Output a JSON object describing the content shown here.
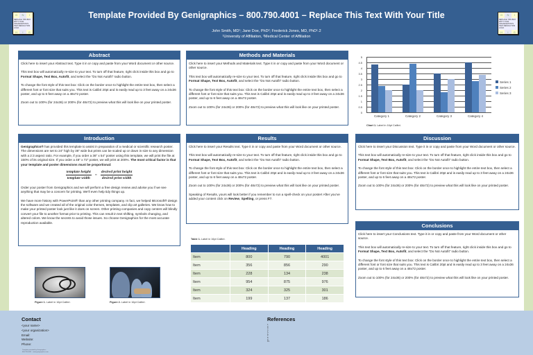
{
  "header": {
    "title": "Template Provided By Genigraphics – 800.790.4001 – Replace This Text With Your Title",
    "authors": "John Smith, MD¹; Jane Doe, PhD²; Frederick Jones, MD, PhD¹˒2",
    "affiliations": "¹University of Affiliation, ²Medical Center of Affiliation",
    "logo": {
      "top": [
        "G",
        "N",
        "I"
      ],
      "mid": "REPLACE THIS BOX WITH YOUR ORGANIZATION'S HIGH RESOLUTION LOGO",
      "bottom": [
        "H",
        "I",
        "G"
      ]
    }
  },
  "sections": {
    "abstract": {
      "heading": "Abstract",
      "p1": "Click here to insert your Abstract text. Type it in or copy and paste from your Word document or other source.",
      "p2a": "This text box will automatically re-size to your text. To turn off that feature, right click inside this box and go to ",
      "p2b": "Format Shape, Text Box, Autofit",
      "p2c": ", and select the “Do Not Autofit” radio button.",
      "p3": "To change the font style of this text box: Click on the border once to highlight the entire text box, then select a different font or font size that suits you. This text is Calibri 20pt and is easily read up to 3 feet away on a 24x36 poster, and up to 6 feet away on a 48x72 poster.",
      "p4": "Zoom out to 100% (for 24x36) or 200% (for 48x72) to preview what this will look like on your printed poster."
    },
    "methods": {
      "heading": "Methods and Materials",
      "p1": "Click here to insert your Methods and Materials text. Type it in or copy and paste from your Word document or other source.",
      "p2a": "This text box will automatically re-size to your text. To turn off that feature, right click inside this box and go to ",
      "p2b": "Format Shape, Text Box, Autofit",
      "p2c": ", and select the “Do Not Autofit” radio button.",
      "p3": "To change the font style of this text box: Click on the border once to highlight the entire text box, then select a different font or font size that suits you. This text is Calibri 20pt and is easily read up to 3 feet away on a 24x36 poster, and up to 6 feet away on a 48x72 poster.",
      "p4": "Zoom out to 100% (for 24x36) or 200% (for 48x72) to preview what this will look like on your printed poster."
    },
    "introduction": {
      "heading": "Introduction",
      "p1_bold": "Genigraphics®",
      "p1": " has provided this template to assist in preparation of a medical or scientific research poster. The dimensions are set to 24” high by 36” wide but prints can be scaled up or down in size to any dimension with a 2:3 aspect ratio. For example, if you order a 36” x 54” poster using this template, we will print the file at 150% of its original size. If you order a 48” x 72” poster, we will print at 200%. ",
      "p1_bold2": "The most critical factor is that your template and poster dimensions must be proportional:",
      "formula": {
        "num_left": "template height",
        "den_left": "template width",
        "eq": "=",
        "num_right": "desired print height",
        "den_right": "desired print width"
      },
      "p2": "Order your poster from Genigraphics and we will perform a free design review and advise you if we see anything that may be a concern for printing. We’ll even help tidy things up.",
      "p3": "We have more history with PowerPoint® than any other printing company. In fact, we helped Microsoft® design the software and we created all of the original color themes, templates, and clip art galleries. We know how to make your printed poster look just like it does on screen. Other printing companies and copy centers will blindly convert your file to another format prior to printing. This can result in text shifting, symbols changing, and altered colors. We know the secrets to avoid those issues. So choose Genigraphics for the most accurate reproduction available."
    },
    "results": {
      "heading": "Results",
      "p1": "Click here to insert your Results text. Type it in or copy and paste from your Word document or other source.",
      "p2a": "This text box will automatically re-size to your text. To turn off that feature, right click inside this box and go to ",
      "p2b": "Format Shape, Text Box, Autofit",
      "p2c": ", and select the “Do Not Autofit” radio button.",
      "p3": "To change the font style of this text box: Click on the border once to highlight the entire text box, then select a different font or font size that suits you. This text is Calibri 20pt and is easily read up to 3 feet away on a 24x36 poster, and up to 6 feet away on a 48x72 poster.",
      "p4": "Zoom out to 100% (for 24x36) or 200% (for 48x72) to preview what this will look like on your printed poster.",
      "p5a": "Speaking of Results, yours will look better if you remember to run a spell-check on your poster! After you’ve added your content click on ",
      "p5b": "Review",
      "p5c": ", ",
      "p5d": "Spelling",
      "p5e": ", or press F7."
    },
    "discussion": {
      "heading": "Discussion",
      "p1": "Click here to insert your Discussion text. Type it in or copy and paste from your Word document or other source.",
      "p2a": "This text box will automatically re-size to your text. To turn off that feature, right click inside this box and go to ",
      "p2b": "Format Shape, Text Box, Autofit",
      "p2c": ", and select the “Do Not Autofit” radio button.",
      "p3": "To change the font style of this text box: Click on the border once to highlight the entire text box, then select a different font or font size that suits you. This text is Calibri 20pt and is easily read up to 3 feet away on a 24x36 poster, and up to 6 feet away on a 48x72 poster.",
      "p4": "Zoom out to 100% (for 24x36) or 200% (for 48x72) to preview what this will look like on your printed poster."
    },
    "conclusions": {
      "heading": "Conclusions",
      "p1": "Click here to insert your Conclusions text. Type it in or copy and paste from your Word document or other source.",
      "p2a": "This text box will automatically re-size to your text. To turn off that feature, right click inside this box and go to ",
      "p2b": "Format Shape, Text Box, Autofit",
      "p2c": ", and select the “Do Not Autofit” radio button.",
      "p3": "To change the font style of this text box: Click on the border once to highlight the entire text box, then select a different font or font size that suits you. This text is Calibri 20pt and is easily read up to 3 feet away on a 24x36 poster, and up to 6 feet away on a 48x72 poster.",
      "p4": "Zoom out to 100% (for 24x36) or 200% (for 48x72) to preview what this will look like on your printed poster."
    }
  },
  "chart_data": {
    "type": "bar",
    "title": "",
    "categories": [
      "Category 1",
      "Category 2",
      "Category 3",
      "Category 4"
    ],
    "series": [
      {
        "name": "Series 1",
        "values": [
          4.3,
          2.5,
          3.5,
          4.5
        ],
        "color": "#3b6195"
      },
      {
        "name": "Series 2",
        "values": [
          2.4,
          4.4,
          1.8,
          2.8
        ],
        "color": "#4f81bd"
      },
      {
        "name": "Series 3",
        "values": [
          2,
          2,
          3,
          3.4
        ],
        "color": "#a9bde0"
      }
    ],
    "yticks": [
      "5",
      "4.5",
      "4",
      "3.5",
      "3",
      "2.5",
      "2",
      "1.5",
      "1",
      "0.5",
      "0"
    ],
    "ylim": [
      0,
      5
    ],
    "grid": true,
    "legend_position": "right",
    "caption_bold": "Chart 1.",
    "caption": " Label in 16pt Calibri."
  },
  "figures": [
    {
      "label_bold": "Figure 1.",
      "label": " Label in 16pt Calibri."
    },
    {
      "label_bold": "Figure 2.",
      "label": " Label in 16pt Calibri."
    }
  ],
  "table": {
    "caption_bold": "Table 1.",
    "caption": " Label in 16pt Calibri.",
    "headers": [
      "",
      "Heading",
      "Heading",
      "Heading"
    ],
    "rows": [
      [
        "Item",
        "800",
        "790",
        "4001"
      ],
      [
        "Item",
        "356",
        "856",
        "290"
      ],
      [
        "Item",
        "228",
        "134",
        "238"
      ],
      [
        "Item",
        "954",
        "875",
        "976"
      ],
      [
        "Item",
        "324",
        "325",
        "301"
      ],
      [
        "Item",
        "199",
        "137",
        "186"
      ]
    ]
  },
  "footer": {
    "contact": {
      "heading": "Contact",
      "lines": [
        "<your name>",
        "<your organization>",
        "Email:",
        "Website:",
        "Phone:"
      ],
      "fine_print": [
        "Template provided by Genigraphics",
        "800.790.4001 · www.genigraphics.com"
      ]
    },
    "references": {
      "heading": "References",
      "items": [
        "1.",
        "2.",
        "3.",
        "4.",
        "5.",
        "6.",
        "7.",
        "8.",
        "9.",
        "10."
      ]
    }
  },
  "colors": {
    "header_bg": "#355f91",
    "panel_heading_bg": "#355f91",
    "side_strip": "#d7e4bd",
    "footer_bg": "#b9cde4",
    "table_row_odd": "#dce6cf",
    "table_row_even": "#eef3e7"
  }
}
